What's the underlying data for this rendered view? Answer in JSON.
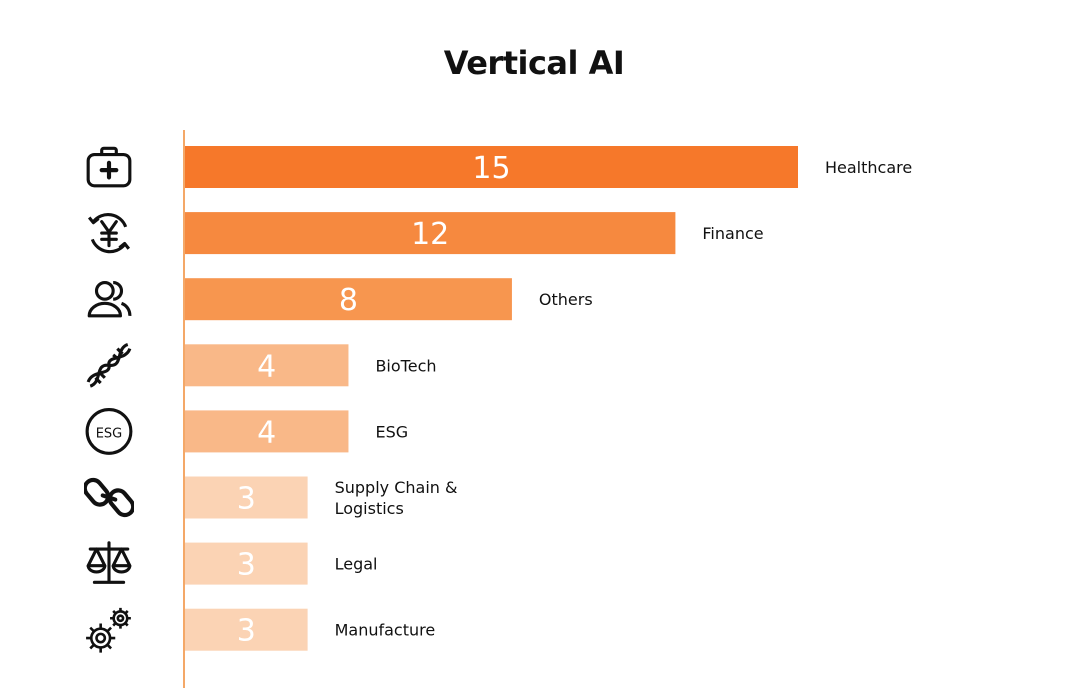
{
  "chart_data": {
    "type": "bar",
    "orientation": "horizontal",
    "title": "Vertical AI",
    "categories": [
      "Healthcare",
      "Finance",
      "Others",
      "BioTech",
      "ESG",
      "Supply Chain & Logistics",
      "Legal",
      "Manufacture"
    ],
    "label_lines": [
      [
        "Healthcare"
      ],
      [
        "Finance"
      ],
      [
        "Others"
      ],
      [
        "BioTech"
      ],
      [
        "ESG"
      ],
      [
        "Supply Chain &",
        "Logistics"
      ],
      [
        "Legal"
      ],
      [
        "Manufacture"
      ]
    ],
    "values": [
      15,
      12,
      8,
      4,
      4,
      3,
      3,
      3
    ],
    "bar_colors": [
      "#F6782A",
      "#F6893F",
      "#F7964F",
      "#F9B888",
      "#F9B888",
      "#FBD3B4",
      "#FBD3B4",
      "#FBD3B4"
    ],
    "category_icons": [
      "medical-kit-icon",
      "currency-exchange-icon",
      "users-icon",
      "dna-icon",
      "esg-badge-icon",
      "chain-link-icon",
      "balance-scale-icon",
      "gears-icon"
    ],
    "esg_icon_text": "ESG",
    "xlim": [
      0,
      15
    ],
    "axis_color": "#F4A868",
    "grid": false,
    "legend": "none"
  }
}
